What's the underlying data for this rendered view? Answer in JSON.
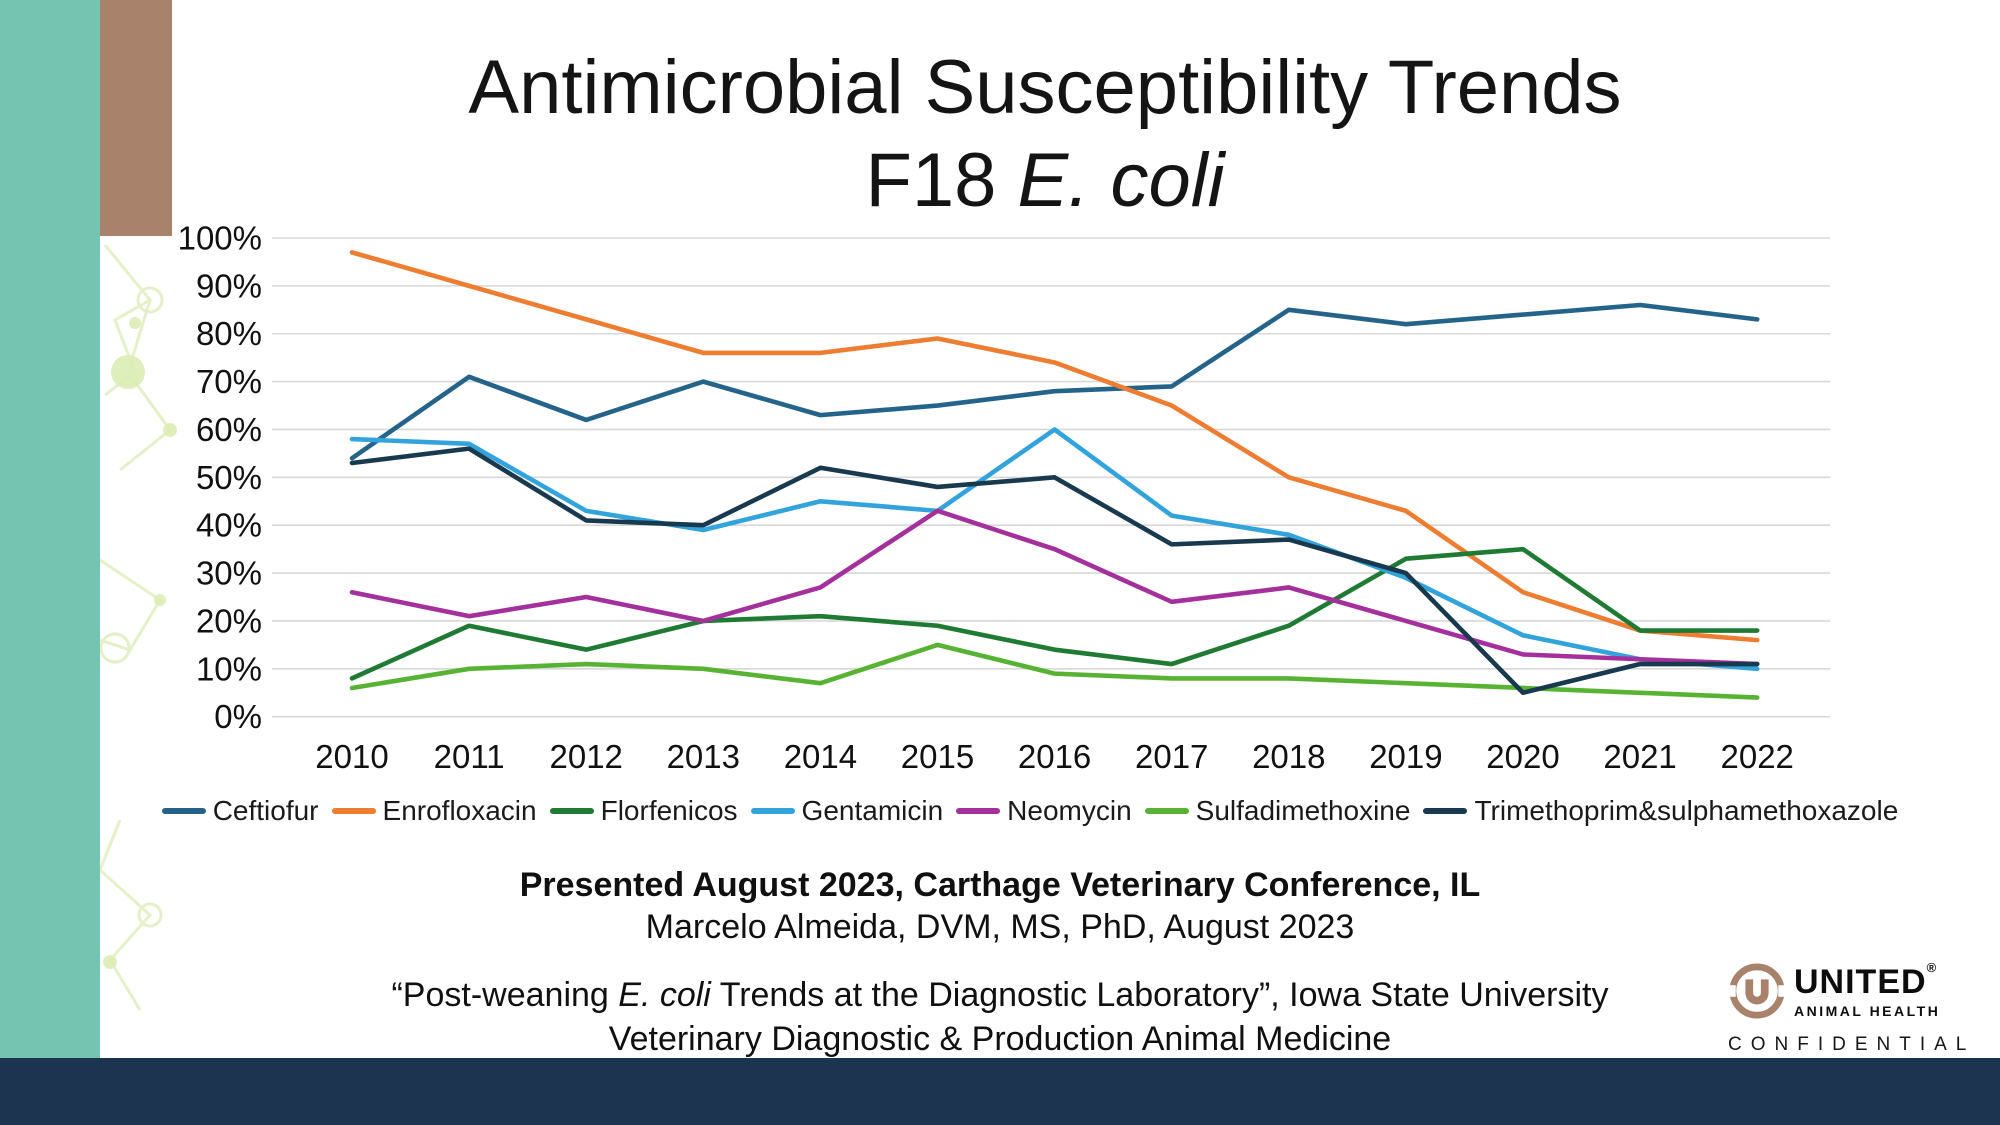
{
  "slide": {
    "title_line1": "Antimicrobial Susceptibility Trends",
    "title_line2_prefix": "F18 ",
    "title_line2_italic": "E. coli",
    "presented_line": "Presented August 2023, Carthage Veterinary Conference, IL",
    "author_line": "Marcelo Almeida, DVM, MS, PhD, August 2023",
    "quote_prefix": "“Post-weaning ",
    "quote_italic": "E. coli",
    "quote_suffix": " Trends at the Diagnostic Laboratory”, Iowa State University",
    "quote_line2": "Veterinary Diagnostic & Production Animal Medicine",
    "logo": {
      "brand": "UNITED",
      "reg": "®",
      "sub": "ANIMAL HEALTH",
      "mark_letter": "U",
      "confidential": "CONFIDENTIAL"
    },
    "colors": {
      "teal_bar": "#74c4b1",
      "brown_block": "#a8826b",
      "bottom_bar": "#1d3451",
      "gridline": "#d8d8d8",
      "logo_brown": "#a8826b"
    }
  },
  "chart_data": {
    "type": "line",
    "x": [
      2010,
      2011,
      2012,
      2013,
      2014,
      2015,
      2016,
      2017,
      2018,
      2019,
      2020,
      2021,
      2022
    ],
    "y_ticks": [
      "0%",
      "10%",
      "20%",
      "30%",
      "40%",
      "50%",
      "60%",
      "70%",
      "80%",
      "90%",
      "100%"
    ],
    "ylim": [
      0,
      100
    ],
    "grid": "horizontal-only",
    "legend_position": "bottom",
    "ylabel": "",
    "xlabel": "",
    "series": [
      {
        "name": "Ceftiofur",
        "color": "#24648a",
        "values": [
          54,
          71,
          62,
          70,
          63,
          65,
          68,
          69,
          85,
          82,
          84,
          86,
          83
        ]
      },
      {
        "name": "Enrofloxacin",
        "color": "#ed7d31",
        "values": [
          97,
          90,
          83,
          76,
          76,
          79,
          74,
          65,
          50,
          43,
          26,
          18,
          16
        ]
      },
      {
        "name": "Florfenicos",
        "color": "#1f7a33",
        "values": [
          8,
          19,
          14,
          20,
          21,
          19,
          14,
          11,
          19,
          33,
          35,
          18,
          18
        ]
      },
      {
        "name": "Gentamicin",
        "color": "#33a3dc",
        "values": [
          58,
          57,
          43,
          39,
          45,
          43,
          60,
          42,
          38,
          29,
          17,
          12,
          10
        ]
      },
      {
        "name": "Neomycin",
        "color": "#a4309c",
        "values": [
          26,
          21,
          25,
          20,
          27,
          43,
          35,
          24,
          27,
          20,
          13,
          12,
          11
        ]
      },
      {
        "name": "Sulfadimethoxine",
        "color": "#58b335",
        "values": [
          6,
          10,
          11,
          10,
          7,
          15,
          9,
          8,
          8,
          7,
          6,
          5,
          4
        ]
      },
      {
        "name": "Trimethoprim&sulphamethoxazole",
        "color": "#19394e",
        "values": [
          53,
          56,
          41,
          40,
          52,
          48,
          50,
          36,
          37,
          30,
          5,
          11,
          11
        ]
      }
    ]
  }
}
